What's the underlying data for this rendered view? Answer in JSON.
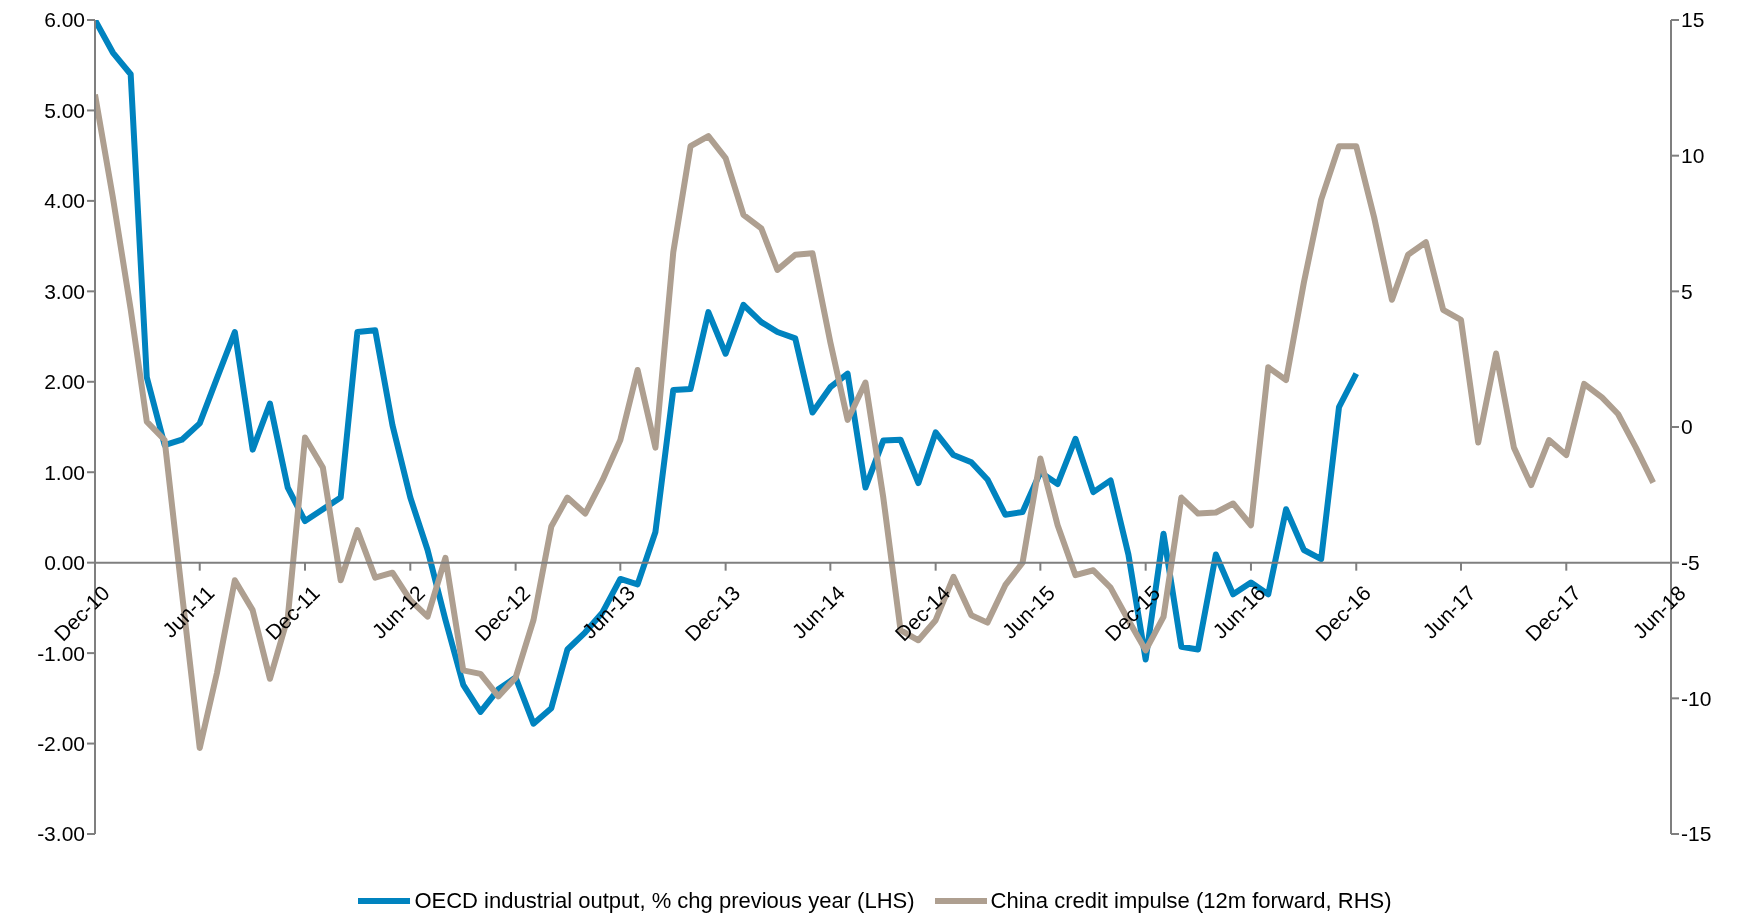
{
  "chart_data": {
    "type": "line",
    "x": [
      "2010-12",
      "2011-01",
      "2011-02",
      "2011-03",
      "2011-04",
      "2011-05",
      "2011-06",
      "2011-07",
      "2011-08",
      "2011-09",
      "2011-10",
      "2011-11",
      "2011-12",
      "2012-01",
      "2012-02",
      "2012-03",
      "2012-04",
      "2012-05",
      "2012-06",
      "2012-07",
      "2012-08",
      "2012-09",
      "2012-10",
      "2012-11",
      "2012-12",
      "2013-01",
      "2013-02",
      "2013-03",
      "2013-04",
      "2013-05",
      "2013-06",
      "2013-07",
      "2013-08",
      "2013-09",
      "2013-10",
      "2013-11",
      "2013-12",
      "2014-01",
      "2014-02",
      "2014-03",
      "2014-04",
      "2014-05",
      "2014-06",
      "2014-07",
      "2014-08",
      "2014-09",
      "2014-10",
      "2014-11",
      "2014-12",
      "2015-01",
      "2015-02",
      "2015-03",
      "2015-04",
      "2015-05",
      "2015-06",
      "2015-07",
      "2015-08",
      "2015-09",
      "2015-10",
      "2015-11",
      "2015-12",
      "2016-01",
      "2016-02",
      "2016-03",
      "2016-04",
      "2016-05",
      "2016-06",
      "2016-07",
      "2016-08",
      "2016-09",
      "2016-10",
      "2016-11",
      "2016-12",
      "2017-01",
      "2017-02",
      "2017-03",
      "2017-04",
      "2017-05",
      "2017-06",
      "2017-07",
      "2017-08",
      "2017-09",
      "2017-10",
      "2017-11",
      "2017-12",
      "2018-01",
      "2018-02",
      "2018-03",
      "2018-04",
      "2018-05"
    ],
    "series": [
      {
        "name": "OECD industrial output, % chg previous year (LHS)",
        "color": "#0083bf",
        "values": [
          6.0,
          5.64,
          5.4,
          2.05,
          1.3,
          1.36,
          1.54,
          2.04,
          2.55,
          1.25,
          1.76,
          0.83,
          0.46,
          0.59,
          0.72,
          2.55,
          2.57,
          1.52,
          0.72,
          0.14,
          -0.63,
          -1.35,
          -1.65,
          -1.4,
          -1.27,
          -1.78,
          -1.61,
          -0.96,
          -0.77,
          -0.55,
          -0.18,
          -0.24,
          0.34,
          1.91,
          1.92,
          2.77,
          2.31,
          2.85,
          2.66,
          2.55,
          2.48,
          1.66,
          1.94,
          2.09,
          0.83,
          1.35,
          1.36,
          0.88,
          1.44,
          1.19,
          1.11,
          0.92,
          0.53,
          0.56,
          1.0,
          0.87,
          1.37,
          0.78,
          0.91,
          0.09,
          -1.07,
          0.32,
          -0.93,
          -0.96,
          0.09,
          -0.35,
          -0.22,
          -0.35,
          0.59,
          0.14,
          0.04,
          1.72,
          2.09,
          null,
          null,
          null,
          null,
          null,
          null,
          null,
          null,
          null,
          null,
          null,
          null,
          null,
          null,
          null,
          null,
          null
        ]
      },
      {
        "name": "China credit impulse (12m forward, RHS)",
        "color": "#ae9f90",
        "axis": "y2",
        "values": [
          12.25,
          8.47,
          4.34,
          0.2,
          -0.48,
          -6.1,
          -11.83,
          -9.06,
          -5.65,
          -6.75,
          -9.28,
          -7.03,
          -0.39,
          -1.49,
          -5.65,
          -3.8,
          -5.55,
          -5.37,
          -6.38,
          -6.99,
          -4.82,
          -8.97,
          -9.1,
          -9.93,
          -9.24,
          -7.12,
          -3.67,
          -2.6,
          -3.19,
          -1.96,
          -0.48,
          2.1,
          -0.76,
          6.44,
          10.35,
          10.72,
          9.91,
          7.82,
          7.32,
          5.79,
          6.35,
          6.4,
          3.12,
          0.26,
          1.64,
          -2.6,
          -7.49,
          -7.86,
          -7.12,
          -5.52,
          -6.94,
          -7.21,
          -5.83,
          -5.0,
          -1.16,
          -3.62,
          -5.46,
          -5.28,
          -5.92,
          -7.12,
          -8.23,
          -7.0,
          -2.6,
          -3.19,
          -3.15,
          -2.82,
          -3.62,
          2.2,
          1.73,
          5.33,
          8.38,
          10.35,
          10.35,
          7.73,
          4.69,
          6.35,
          6.81,
          4.32,
          3.95,
          -0.57,
          2.71,
          -0.76,
          -2.14,
          -0.48,
          -1.03,
          1.59,
          1.09,
          0.48,
          -0.76,
          -2.05
        ]
      }
    ],
    "xlim": [
      "2010-12",
      "2018-06"
    ],
    "xticks": [
      {
        "value": "2010-12",
        "label": "Dec-10"
      },
      {
        "value": "2011-06",
        "label": "Jun-11"
      },
      {
        "value": "2011-12",
        "label": "Dec-11"
      },
      {
        "value": "2012-06",
        "label": "Jun-12"
      },
      {
        "value": "2012-12",
        "label": "Dec-12"
      },
      {
        "value": "2013-06",
        "label": "Jun-13"
      },
      {
        "value": "2013-12",
        "label": "Dec-13"
      },
      {
        "value": "2014-06",
        "label": "Jun-14"
      },
      {
        "value": "2014-12",
        "label": "Dec-14"
      },
      {
        "value": "2015-06",
        "label": "Jun-15"
      },
      {
        "value": "2015-12",
        "label": "Dec-15"
      },
      {
        "value": "2016-06",
        "label": "Jun-16"
      },
      {
        "value": "2016-12",
        "label": "Dec-16"
      },
      {
        "value": "2017-06",
        "label": "Jun-17"
      },
      {
        "value": "2017-12",
        "label": "Dec-17"
      },
      {
        "value": "2018-06",
        "label": "Jun-18"
      }
    ],
    "ylim": [
      -3,
      6
    ],
    "yticks": [
      {
        "value": -3,
        "label": "-3.00"
      },
      {
        "value": -2,
        "label": "-2.00"
      },
      {
        "value": -1,
        "label": "-1.00"
      },
      {
        "value": 0,
        "label": "0.00"
      },
      {
        "value": 1,
        "label": "1.00"
      },
      {
        "value": 2,
        "label": "2.00"
      },
      {
        "value": 3,
        "label": "3.00"
      },
      {
        "value": 4,
        "label": "4.00"
      },
      {
        "value": 5,
        "label": "5.00"
      },
      {
        "value": 6,
        "label": "6.00"
      }
    ],
    "y2lim": [
      -15,
      15
    ],
    "y2ticks": [
      -15,
      -10,
      -5,
      0,
      5,
      10,
      15
    ],
    "grid": false,
    "legend": "bottom",
    "marker": "none",
    "line_style": "solid"
  }
}
